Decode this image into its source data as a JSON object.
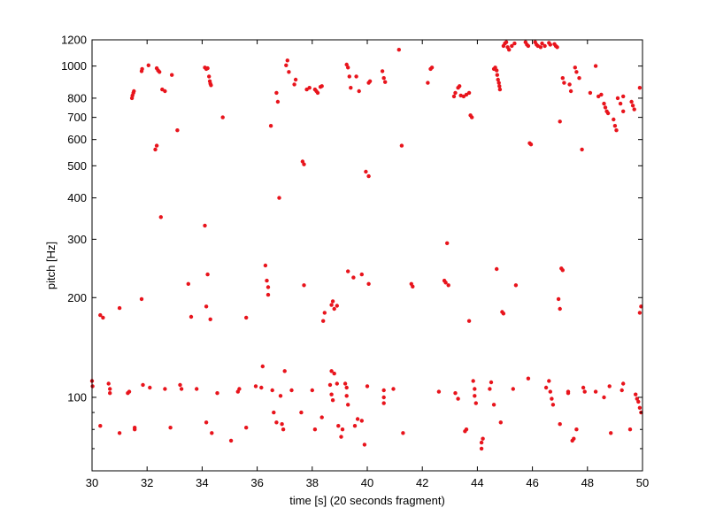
{
  "chart_data": {
    "type": "scatter",
    "title": "",
    "xlabel": "time [s] (20 seconds fragment)",
    "ylabel": "pitch [Hz]",
    "xlim": [
      30,
      50
    ],
    "ylim": [
      60,
      1200
    ],
    "yscale": "log",
    "grid": false,
    "legend": "none",
    "marker_color": "#e8141c",
    "xticks": [
      30,
      32,
      34,
      36,
      38,
      40,
      42,
      44,
      46,
      48,
      50
    ],
    "xtick_labels": [
      "30",
      "32",
      "34",
      "36",
      "38",
      "40",
      "42",
      "44",
      "46",
      "48",
      "50"
    ],
    "yticks": [
      100,
      200,
      300,
      400,
      500,
      600,
      700,
      800,
      1000,
      1200
    ],
    "ytick_labels": [
      "100",
      "200",
      "300",
      "400",
      "500",
      "600",
      "700",
      "800",
      "1000",
      "1200"
    ],
    "points": [
      [
        30.0,
        112
      ],
      [
        30.02,
        108
      ],
      [
        30.3,
        177
      ],
      [
        30.4,
        174
      ],
      [
        30.3,
        82
      ],
      [
        30.6,
        110
      ],
      [
        30.65,
        106
      ],
      [
        30.65,
        103
      ],
      [
        31.0,
        186
      ],
      [
        31.0,
        78
      ],
      [
        31.3,
        103
      ],
      [
        31.35,
        104
      ],
      [
        31.55,
        81
      ],
      [
        31.55,
        80
      ],
      [
        31.85,
        109
      ],
      [
        32.1,
        107
      ],
      [
        31.45,
        800
      ],
      [
        31.47,
        815
      ],
      [
        31.5,
        830
      ],
      [
        31.52,
        840
      ],
      [
        31.8,
        965
      ],
      [
        31.82,
        980
      ],
      [
        32.05,
        1005
      ],
      [
        32.35,
        985
      ],
      [
        32.4,
        970
      ],
      [
        32.45,
        960
      ],
      [
        32.55,
        850
      ],
      [
        32.65,
        840
      ],
      [
        32.9,
        940
      ],
      [
        32.3,
        560
      ],
      [
        32.35,
        575
      ],
      [
        32.5,
        350
      ],
      [
        31.8,
        198
      ],
      [
        32.65,
        106
      ],
      [
        32.85,
        81
      ],
      [
        33.2,
        109
      ],
      [
        33.25,
        106
      ],
      [
        33.5,
        220
      ],
      [
        33.6,
        175
      ],
      [
        33.8,
        106
      ],
      [
        33.1,
        640
      ],
      [
        34.1,
        990
      ],
      [
        34.15,
        980
      ],
      [
        34.2,
        985
      ],
      [
        34.25,
        930
      ],
      [
        34.28,
        900
      ],
      [
        34.3,
        885
      ],
      [
        34.32,
        875
      ],
      [
        34.1,
        330
      ],
      [
        34.2,
        235
      ],
      [
        34.15,
        188
      ],
      [
        34.3,
        172
      ],
      [
        34.15,
        84
      ],
      [
        34.35,
        78
      ],
      [
        34.55,
        103
      ],
      [
        34.75,
        700
      ],
      [
        35.05,
        74
      ],
      [
        35.3,
        104
      ],
      [
        35.35,
        106
      ],
      [
        35.6,
        174
      ],
      [
        35.6,
        81
      ],
      [
        35.95,
        108
      ],
      [
        36.15,
        107
      ],
      [
        36.2,
        124
      ],
      [
        36.3,
        250
      ],
      [
        36.35,
        225
      ],
      [
        36.4,
        215
      ],
      [
        36.4,
        204
      ],
      [
        36.55,
        105
      ],
      [
        36.5,
        660
      ],
      [
        36.7,
        830
      ],
      [
        36.75,
        780
      ],
      [
        36.8,
        400
      ],
      [
        36.6,
        90
      ],
      [
        36.7,
        84
      ],
      [
        36.9,
        83
      ],
      [
        36.95,
        80
      ],
      [
        36.85,
        101
      ],
      [
        37.0,
        120
      ],
      [
        37.1,
        1040
      ],
      [
        37.05,
        1005
      ],
      [
        37.15,
        960
      ],
      [
        37.4,
        910
      ],
      [
        37.35,
        880
      ],
      [
        37.25,
        105
      ],
      [
        37.65,
        515
      ],
      [
        37.7,
        505
      ],
      [
        37.7,
        218
      ],
      [
        37.6,
        90
      ],
      [
        37.8,
        850
      ],
      [
        37.9,
        860
      ],
      [
        38.1,
        850
      ],
      [
        38.15,
        840
      ],
      [
        38.2,
        830
      ],
      [
        38.3,
        865
      ],
      [
        38.35,
        870
      ],
      [
        38.0,
        105
      ],
      [
        38.1,
        80
      ],
      [
        38.35,
        87
      ],
      [
        38.45,
        180
      ],
      [
        38.4,
        170
      ],
      [
        38.7,
        190
      ],
      [
        38.75,
        195
      ],
      [
        38.8,
        185
      ],
      [
        38.9,
        189
      ],
      [
        38.7,
        120
      ],
      [
        38.8,
        118
      ],
      [
        38.65,
        109
      ],
      [
        38.7,
        102
      ],
      [
        38.75,
        98
      ],
      [
        38.9,
        110
      ],
      [
        39.05,
        76
      ],
      [
        39.1,
        80
      ],
      [
        38.95,
        82
      ],
      [
        39.25,
        1010
      ],
      [
        39.3,
        990
      ],
      [
        39.35,
        930
      ],
      [
        39.4,
        860
      ],
      [
        39.3,
        240
      ],
      [
        39.5,
        230
      ],
      [
        39.6,
        930
      ],
      [
        39.7,
        840
      ],
      [
        39.2,
        110
      ],
      [
        39.25,
        107
      ],
      [
        39.25,
        101
      ],
      [
        39.3,
        95
      ],
      [
        39.55,
        82
      ],
      [
        39.65,
        86
      ],
      [
        39.8,
        85
      ],
      [
        39.9,
        72
      ],
      [
        39.8,
        235
      ],
      [
        40.05,
        220
      ],
      [
        39.95,
        480
      ],
      [
        40.05,
        465
      ],
      [
        40.0,
        108
      ],
      [
        40.1,
        900
      ],
      [
        40.05,
        890
      ],
      [
        40.55,
        965
      ],
      [
        40.6,
        920
      ],
      [
        40.65,
        895
      ],
      [
        40.6,
        105
      ],
      [
        40.6,
        100
      ],
      [
        40.6,
        96
      ],
      [
        40.95,
        106
      ],
      [
        41.15,
        1120
      ],
      [
        41.25,
        575
      ],
      [
        41.3,
        78
      ],
      [
        41.6,
        220
      ],
      [
        41.65,
        216
      ],
      [
        42.2,
        890
      ],
      [
        42.3,
        980
      ],
      [
        42.35,
        990
      ],
      [
        42.6,
        104
      ],
      [
        42.8,
        225
      ],
      [
        42.85,
        222
      ],
      [
        42.9,
        292
      ],
      [
        42.95,
        218
      ],
      [
        43.15,
        810
      ],
      [
        43.2,
        830
      ],
      [
        43.3,
        860
      ],
      [
        43.35,
        870
      ],
      [
        43.4,
        815
      ],
      [
        43.5,
        810
      ],
      [
        43.6,
        820
      ],
      [
        43.7,
        830
      ],
      [
        43.75,
        710
      ],
      [
        43.8,
        700
      ],
      [
        43.2,
        103
      ],
      [
        43.3,
        99
      ],
      [
        43.55,
        79
      ],
      [
        43.7,
        170
      ],
      [
        43.6,
        80
      ],
      [
        43.85,
        112
      ],
      [
        43.9,
        106
      ],
      [
        43.9,
        101
      ],
      [
        43.95,
        96
      ],
      [
        44.15,
        73
      ],
      [
        44.2,
        75
      ],
      [
        44.15,
        70
      ],
      [
        44.5,
        111
      ],
      [
        44.45,
        106
      ],
      [
        44.6,
        95
      ],
      [
        44.6,
        980
      ],
      [
        44.65,
        990
      ],
      [
        44.7,
        970
      ],
      [
        44.72,
        940
      ],
      [
        44.75,
        910
      ],
      [
        44.78,
        890
      ],
      [
        44.8,
        870
      ],
      [
        44.82,
        850
      ],
      [
        44.7,
        244
      ],
      [
        44.9,
        181
      ],
      [
        44.95,
        179
      ],
      [
        44.85,
        84
      ],
      [
        45.3,
        106
      ],
      [
        44.95,
        1150
      ],
      [
        45.0,
        1170
      ],
      [
        45.05,
        1180
      ],
      [
        45.1,
        1140
      ],
      [
        45.15,
        1120
      ],
      [
        45.25,
        1150
      ],
      [
        45.35,
        1170
      ],
      [
        45.4,
        218
      ],
      [
        45.75,
        1180
      ],
      [
        45.8,
        1160
      ],
      [
        45.85,
        1150
      ],
      [
        45.9,
        585
      ],
      [
        45.95,
        580
      ],
      [
        46.1,
        1180
      ],
      [
        46.15,
        1160
      ],
      [
        46.2,
        1150
      ],
      [
        46.3,
        1140
      ],
      [
        46.35,
        1170
      ],
      [
        46.45,
        1150
      ],
      [
        46.6,
        1175
      ],
      [
        46.65,
        1160
      ],
      [
        46.8,
        1165
      ],
      [
        46.85,
        1150
      ],
      [
        46.9,
        1140
      ],
      [
        45.85,
        114
      ],
      [
        46.5,
        107
      ],
      [
        46.6,
        112
      ],
      [
        46.65,
        104
      ],
      [
        46.7,
        99
      ],
      [
        46.75,
        95
      ],
      [
        46.95,
        198
      ],
      [
        47.0,
        185
      ],
      [
        47.05,
        245
      ],
      [
        47.1,
        242
      ],
      [
        47.0,
        680
      ],
      [
        47.1,
        920
      ],
      [
        47.15,
        890
      ],
      [
        47.35,
        880
      ],
      [
        47.4,
        840
      ],
      [
        47.55,
        990
      ],
      [
        47.6,
        960
      ],
      [
        47.7,
        920
      ],
      [
        47.8,
        560
      ],
      [
        47.0,
        83
      ],
      [
        47.3,
        104
      ],
      [
        47.3,
        103
      ],
      [
        47.45,
        74
      ],
      [
        47.5,
        75
      ],
      [
        47.6,
        80
      ],
      [
        47.85,
        107
      ],
      [
        47.9,
        104
      ],
      [
        48.1,
        830
      ],
      [
        48.3,
        1000
      ],
      [
        48.4,
        810
      ],
      [
        48.5,
        820
      ],
      [
        48.6,
        770
      ],
      [
        48.65,
        750
      ],
      [
        48.7,
        730
      ],
      [
        48.75,
        720
      ],
      [
        48.95,
        690
      ],
      [
        49.0,
        660
      ],
      [
        49.05,
        640
      ],
      [
        49.1,
        800
      ],
      [
        49.2,
        770
      ],
      [
        49.3,
        730
      ],
      [
        49.3,
        810
      ],
      [
        49.6,
        780
      ],
      [
        49.65,
        760
      ],
      [
        49.7,
        740
      ],
      [
        49.9,
        860
      ],
      [
        48.3,
        104
      ],
      [
        48.6,
        100
      ],
      [
        48.85,
        78
      ],
      [
        48.8,
        108
      ],
      [
        49.25,
        105
      ],
      [
        49.3,
        110
      ],
      [
        49.55,
        80
      ],
      [
        49.75,
        102
      ],
      [
        49.8,
        99
      ],
      [
        49.85,
        97
      ],
      [
        49.9,
        93
      ],
      [
        49.95,
        90
      ],
      [
        49.9,
        180
      ],
      [
        49.95,
        188
      ]
    ]
  }
}
